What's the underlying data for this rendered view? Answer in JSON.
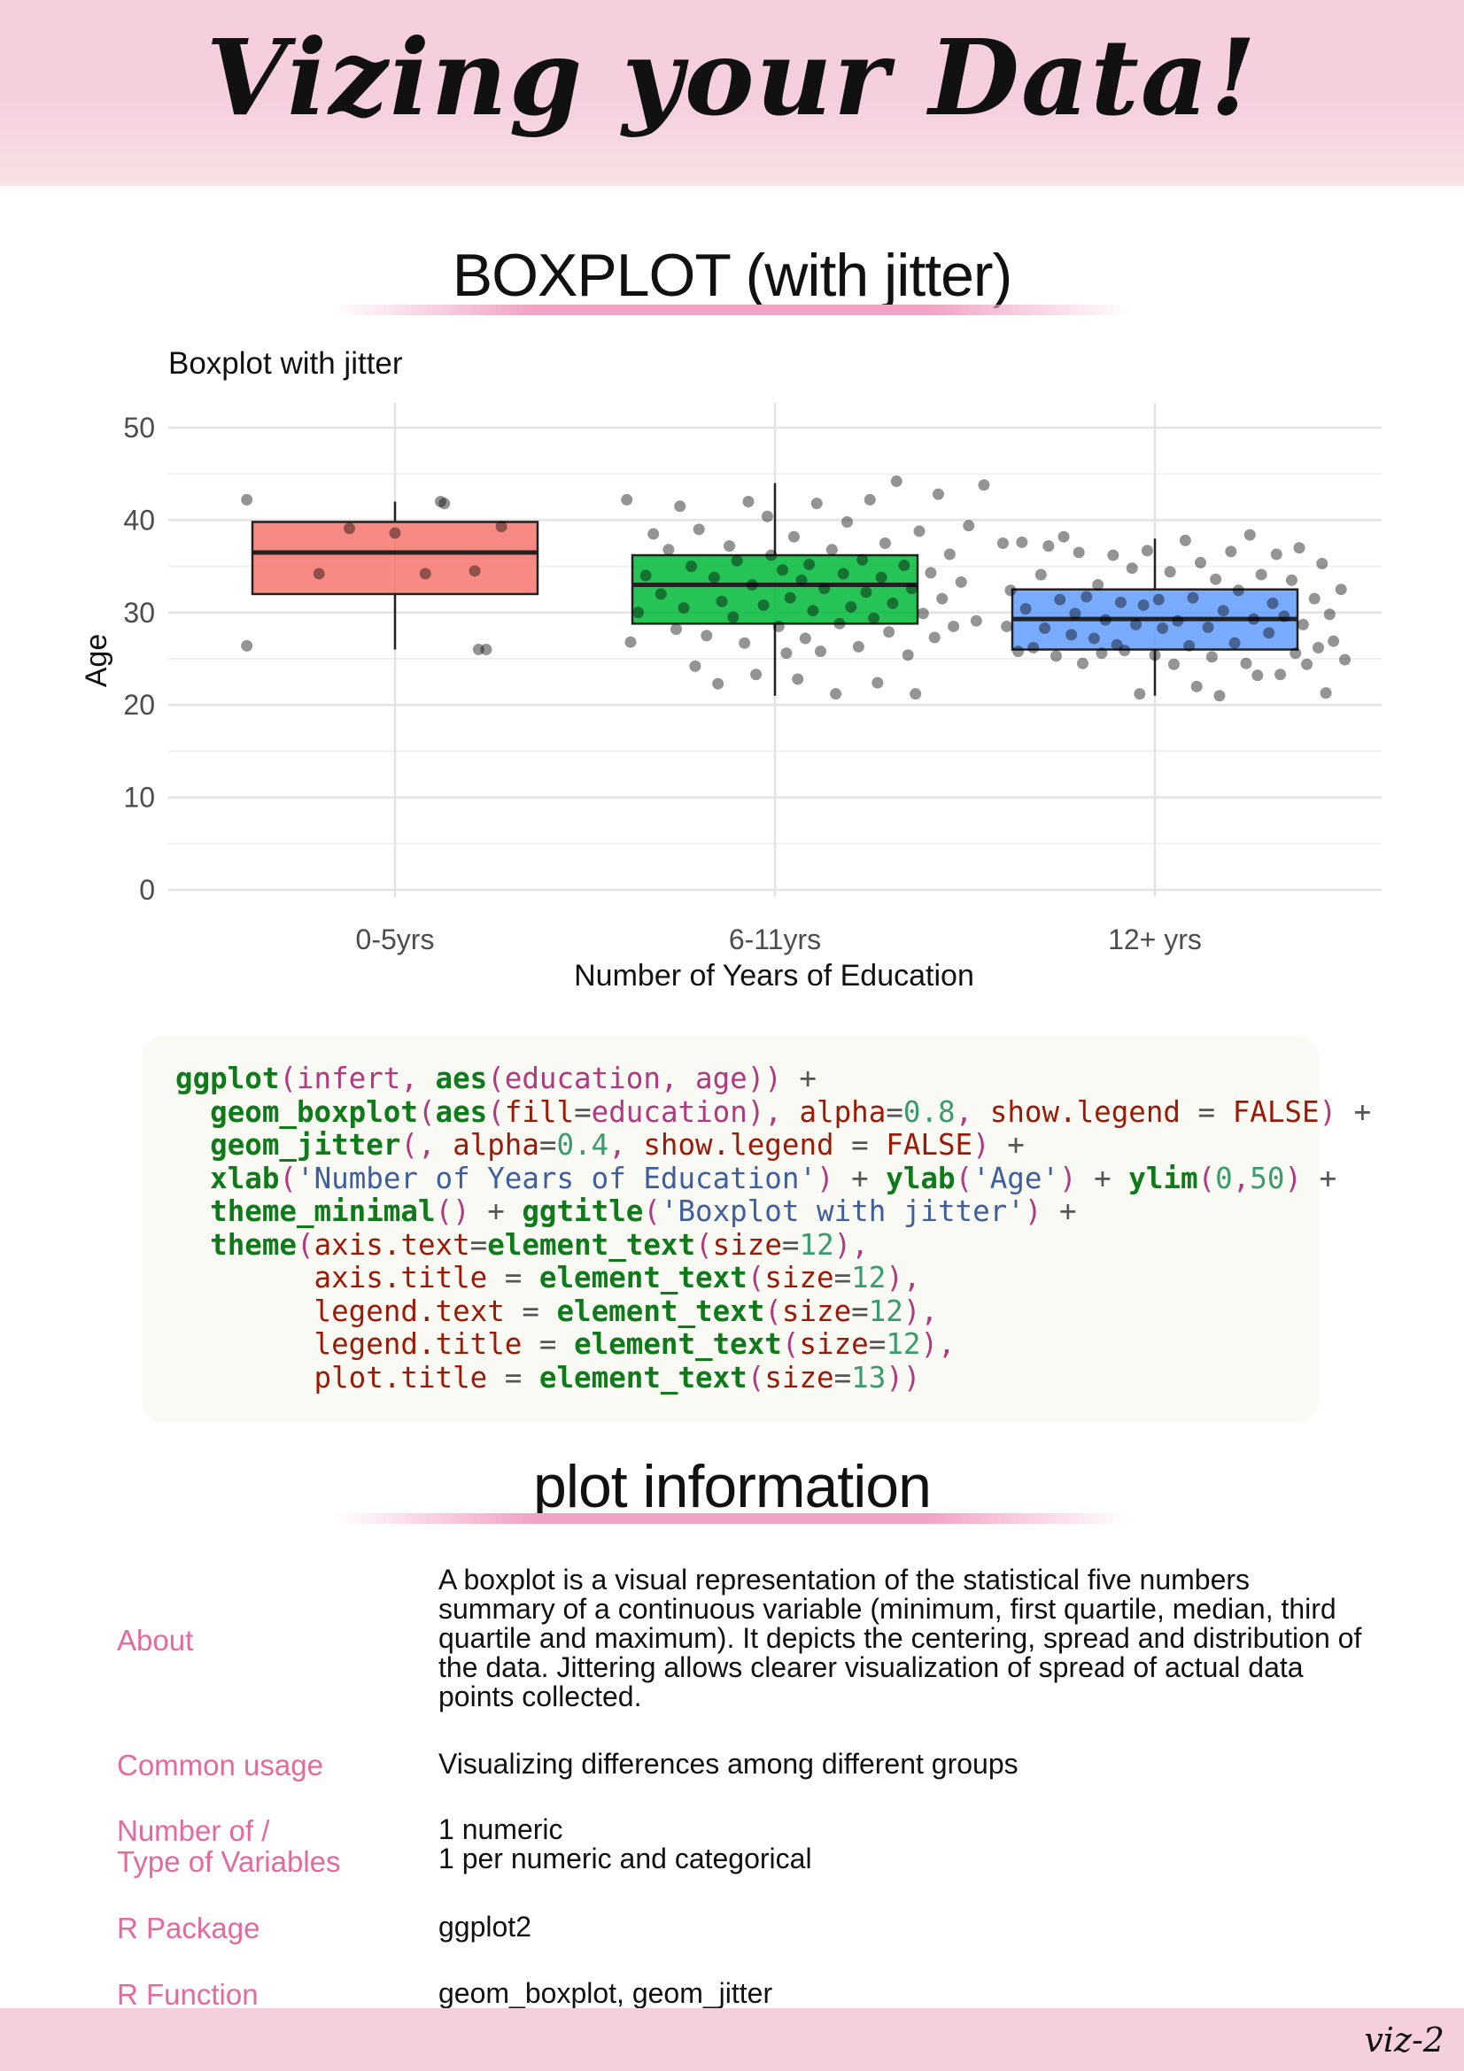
{
  "header": {
    "title": "Vizing your Data!"
  },
  "sections": {
    "chart_title": "BOXPLOT (with jitter)",
    "info_title": "plot information"
  },
  "chart_data": {
    "type": "boxplot",
    "title": "Boxplot with jitter",
    "xlabel": "Number of Years of Education",
    "ylabel": "Age",
    "ylim": [
      0,
      50
    ],
    "yticks": [
      0,
      10,
      20,
      30,
      40,
      50
    ],
    "grid": true,
    "categories": [
      "0-5yrs",
      "6-11yrs",
      "12+ yrs"
    ],
    "boxes": [
      {
        "category": "0-5yrs",
        "whisker_low": 26,
        "q1": 32,
        "median": 36.5,
        "q3": 39.8,
        "whisker_high": 42,
        "color": "#F8766D"
      },
      {
        "category": "6-11yrs",
        "whisker_low": 21,
        "q1": 28.8,
        "median": 33,
        "q3": 36.2,
        "whisker_high": 44,
        "color": "#00BA38"
      },
      {
        "category": "12+ yrs",
        "whisker_low": 21,
        "q1": 26,
        "median": 29.3,
        "q3": 32.5,
        "whisker_high": 38,
        "color": "#619CFF"
      }
    ],
    "points": [
      [
        0.61,
        42.2
      ],
      [
        0.61,
        26.4
      ],
      [
        0.8,
        34.2
      ],
      [
        0.88,
        39.1
      ],
      [
        1.0,
        38.6
      ],
      [
        1.08,
        34.2
      ],
      [
        1.12,
        42
      ],
      [
        1.13,
        41.8
      ],
      [
        1.21,
        34.5
      ],
      [
        1.22,
        26
      ],
      [
        1.24,
        26
      ],
      [
        1.28,
        39.3
      ],
      [
        1.61,
        42.2
      ],
      [
        1.62,
        26.8
      ],
      [
        1.64,
        30
      ],
      [
        1.66,
        34
      ],
      [
        1.68,
        38.5
      ],
      [
        1.7,
        32
      ],
      [
        1.72,
        36.8
      ],
      [
        1.74,
        28.2
      ],
      [
        1.75,
        41.5
      ],
      [
        1.76,
        30.5
      ],
      [
        1.78,
        35
      ],
      [
        1.79,
        24.2
      ],
      [
        1.8,
        39
      ],
      [
        1.82,
        27.5
      ],
      [
        1.84,
        33.8
      ],
      [
        1.85,
        22.3
      ],
      [
        1.86,
        31.2
      ],
      [
        1.88,
        37.2
      ],
      [
        1.89,
        29.5
      ],
      [
        1.9,
        35.6
      ],
      [
        1.92,
        26.7
      ],
      [
        1.93,
        42
      ],
      [
        1.94,
        33
      ],
      [
        1.95,
        23.3
      ],
      [
        1.97,
        30.8
      ],
      [
        1.98,
        40.4
      ],
      [
        1.99,
        36.2
      ],
      [
        2.01,
        28.5
      ],
      [
        2.02,
        34.6
      ],
      [
        2.03,
        25.6
      ],
      [
        2.04,
        31.6
      ],
      [
        2.05,
        38.2
      ],
      [
        2.06,
        22.8
      ],
      [
        2.07,
        33.5
      ],
      [
        2.08,
        27.2
      ],
      [
        2.09,
        35.2
      ],
      [
        2.1,
        30.2
      ],
      [
        2.11,
        41.8
      ],
      [
        2.12,
        25.8
      ],
      [
        2.13,
        32.6
      ],
      [
        2.15,
        36.8
      ],
      [
        2.16,
        21.2
      ],
      [
        2.17,
        28.8
      ],
      [
        2.18,
        34.2
      ],
      [
        2.19,
        39.8
      ],
      [
        2.2,
        30.6
      ],
      [
        2.22,
        26.3
      ],
      [
        2.23,
        35.7
      ],
      [
        2.24,
        32.2
      ],
      [
        2.25,
        42.2
      ],
      [
        2.26,
        29.4
      ],
      [
        2.27,
        22.4
      ],
      [
        2.28,
        33.8
      ],
      [
        2.29,
        37.5
      ],
      [
        2.3,
        27.9
      ],
      [
        2.31,
        31
      ],
      [
        2.32,
        44.2
      ],
      [
        2.34,
        35.1
      ],
      [
        2.35,
        25.4
      ],
      [
        2.36,
        32.6
      ],
      [
        2.37,
        21.2
      ],
      [
        2.38,
        38.8
      ],
      [
        2.39,
        29.9
      ],
      [
        2.41,
        34.3
      ],
      [
        2.42,
        27.3
      ],
      [
        2.43,
        42.8
      ],
      [
        2.44,
        31.5
      ],
      [
        2.46,
        36.3
      ],
      [
        2.47,
        28.5
      ],
      [
        2.49,
        33.3
      ],
      [
        2.51,
        39.4
      ],
      [
        2.53,
        29.1
      ],
      [
        2.55,
        43.8
      ],
      [
        2.6,
        37.5
      ],
      [
        2.61,
        28.5
      ],
      [
        2.62,
        32.4
      ],
      [
        2.64,
        25.8
      ],
      [
        2.65,
        37.6
      ],
      [
        2.66,
        30.4
      ],
      [
        2.68,
        26.2
      ],
      [
        2.7,
        34.1
      ],
      [
        2.71,
        28.3
      ],
      [
        2.72,
        37.2
      ],
      [
        2.74,
        25.3
      ],
      [
        2.75,
        31.4
      ],
      [
        2.76,
        38.2
      ],
      [
        2.78,
        27.6
      ],
      [
        2.79,
        29.9
      ],
      [
        2.8,
        36.5
      ],
      [
        2.81,
        24.5
      ],
      [
        2.82,
        31.7
      ],
      [
        2.84,
        27.2
      ],
      [
        2.85,
        33
      ],
      [
        2.86,
        25.6
      ],
      [
        2.87,
        29.2
      ],
      [
        2.89,
        36.2
      ],
      [
        2.9,
        26.5
      ],
      [
        2.91,
        31.1
      ],
      [
        2.92,
        25.9
      ],
      [
        2.94,
        34.8
      ],
      [
        2.95,
        28.7
      ],
      [
        2.96,
        21.2
      ],
      [
        2.97,
        30.8
      ],
      [
        2.98,
        36.7
      ],
      [
        3.0,
        25.4
      ],
      [
        3.01,
        31.4
      ],
      [
        3.02,
        28.3
      ],
      [
        3.04,
        34.4
      ],
      [
        3.05,
        24.4
      ],
      [
        3.06,
        29.1
      ],
      [
        3.08,
        37.8
      ],
      [
        3.09,
        26.4
      ],
      [
        3.1,
        31.6
      ],
      [
        3.11,
        22
      ],
      [
        3.12,
        35.4
      ],
      [
        3.14,
        28.4
      ],
      [
        3.15,
        25.2
      ],
      [
        3.16,
        33.6
      ],
      [
        3.17,
        21
      ],
      [
        3.18,
        30.2
      ],
      [
        3.2,
        36.6
      ],
      [
        3.21,
        26.7
      ],
      [
        3.22,
        32.4
      ],
      [
        3.24,
        24.5
      ],
      [
        3.25,
        38.4
      ],
      [
        3.26,
        29.3
      ],
      [
        3.27,
        23.2
      ],
      [
        3.28,
        34.1
      ],
      [
        3.3,
        27.8
      ],
      [
        3.31,
        31
      ],
      [
        3.32,
        36.3
      ],
      [
        3.33,
        23.3
      ],
      [
        3.34,
        29.6
      ],
      [
        3.36,
        33.5
      ],
      [
        3.37,
        25.6
      ],
      [
        3.38,
        37
      ],
      [
        3.39,
        28.7
      ],
      [
        3.4,
        24.4
      ],
      [
        3.42,
        31.5
      ],
      [
        3.43,
        26.2
      ],
      [
        3.44,
        35.3
      ],
      [
        3.45,
        21.3
      ],
      [
        3.46,
        29.8
      ],
      [
        3.47,
        26.9
      ],
      [
        3.49,
        32.5
      ],
      [
        3.5,
        24.9
      ]
    ]
  },
  "code": {
    "lines": [
      [
        [
          "k",
          "ggplot"
        ],
        [
          "p",
          "(infert, "
        ],
        [
          "k",
          "aes"
        ],
        [
          "p",
          "(education, age)) "
        ],
        [
          "o",
          "+"
        ]
      ],
      [
        [
          "o",
          "  "
        ],
        [
          "k",
          "geom_boxplot"
        ],
        [
          "p",
          "("
        ],
        [
          "k",
          "aes"
        ],
        [
          "p",
          "("
        ],
        [
          "r",
          "fill"
        ],
        [
          "o",
          "="
        ],
        [
          "p",
          "education), "
        ],
        [
          "r",
          "alpha"
        ],
        [
          "o",
          "="
        ],
        [
          "n",
          "0.8"
        ],
        [
          "p",
          ", "
        ],
        [
          "r",
          "show.legend"
        ],
        [
          "o",
          " = "
        ],
        [
          "r",
          "FALSE"
        ],
        [
          "p",
          ") "
        ],
        [
          "o",
          "+"
        ]
      ],
      [
        [
          "o",
          "  "
        ],
        [
          "k",
          "geom_jitter"
        ],
        [
          "p",
          "(, "
        ],
        [
          "r",
          "alpha"
        ],
        [
          "o",
          "="
        ],
        [
          "n",
          "0.4"
        ],
        [
          "p",
          ", "
        ],
        [
          "r",
          "show.legend"
        ],
        [
          "o",
          " = "
        ],
        [
          "r",
          "FALSE"
        ],
        [
          "p",
          ") "
        ],
        [
          "o",
          "+"
        ]
      ],
      [
        [
          "o",
          "  "
        ],
        [
          "k",
          "xlab"
        ],
        [
          "p",
          "("
        ],
        [
          "s",
          "'Number of Years of Education'"
        ],
        [
          "p",
          ") "
        ],
        [
          "o",
          "+ "
        ],
        [
          "k",
          "ylab"
        ],
        [
          "p",
          "("
        ],
        [
          "s",
          "'Age'"
        ],
        [
          "p",
          ") "
        ],
        [
          "o",
          "+ "
        ],
        [
          "k",
          "ylim"
        ],
        [
          "p",
          "("
        ],
        [
          "n",
          "0"
        ],
        [
          "p",
          ","
        ],
        [
          "n",
          "50"
        ],
        [
          "p",
          ") "
        ],
        [
          "o",
          "+"
        ]
      ],
      [
        [
          "o",
          "  "
        ],
        [
          "k",
          "theme_minimal"
        ],
        [
          "p",
          "() "
        ],
        [
          "o",
          "+ "
        ],
        [
          "k",
          "ggtitle"
        ],
        [
          "p",
          "("
        ],
        [
          "s",
          "'Boxplot with jitter'"
        ],
        [
          "p",
          ") "
        ],
        [
          "o",
          "+"
        ]
      ],
      [
        [
          "o",
          "  "
        ],
        [
          "k",
          "theme"
        ],
        [
          "p",
          "("
        ],
        [
          "r",
          "axis.text"
        ],
        [
          "o",
          "="
        ],
        [
          "k",
          "element_text"
        ],
        [
          "p",
          "("
        ],
        [
          "r",
          "size"
        ],
        [
          "o",
          "="
        ],
        [
          "n",
          "12"
        ],
        [
          "p",
          "),"
        ]
      ],
      [
        [
          "o",
          "        "
        ],
        [
          "r",
          "axis.title"
        ],
        [
          "o",
          " = "
        ],
        [
          "k",
          "element_text"
        ],
        [
          "p",
          "("
        ],
        [
          "r",
          "size"
        ],
        [
          "o",
          "="
        ],
        [
          "n",
          "12"
        ],
        [
          "p",
          "),"
        ]
      ],
      [
        [
          "o",
          "        "
        ],
        [
          "r",
          "legend.text"
        ],
        [
          "o",
          " = "
        ],
        [
          "k",
          "element_text"
        ],
        [
          "p",
          "("
        ],
        [
          "r",
          "size"
        ],
        [
          "o",
          "="
        ],
        [
          "n",
          "12"
        ],
        [
          "p",
          "),"
        ]
      ],
      [
        [
          "o",
          "        "
        ],
        [
          "r",
          "legend.title"
        ],
        [
          "o",
          " = "
        ],
        [
          "k",
          "element_text"
        ],
        [
          "p",
          "("
        ],
        [
          "r",
          "size"
        ],
        [
          "o",
          "="
        ],
        [
          "n",
          "12"
        ],
        [
          "p",
          "),"
        ]
      ],
      [
        [
          "o",
          "        "
        ],
        [
          "r",
          "plot.title"
        ],
        [
          "o",
          " = "
        ],
        [
          "k",
          "element_text"
        ],
        [
          "p",
          "("
        ],
        [
          "r",
          "size"
        ],
        [
          "o",
          "="
        ],
        [
          "n",
          "13"
        ],
        [
          "p",
          "))"
        ]
      ]
    ]
  },
  "info": {
    "about_label": "About",
    "about_value": "A boxplot is a visual representation of the statistical five numbers summary of a continuous variable (minimum, first quartile, median, third quartile and maximum). It depicts the centering, spread and distribution of the data. Jittering allows clearer visualization of spread of actual data points collected.",
    "usage_label": "Common usage",
    "usage_value": "Visualizing differences among different groups",
    "variables_label": "Number of /\nType of Variables",
    "variables_value": "1 numeric\n1 per numeric and categorical",
    "package_label": "R Package",
    "package_value": "ggplot2",
    "function_label": "R Function",
    "function_value": "geom_boxplot, geom_jitter"
  },
  "footer": {
    "tag": "viz-2"
  }
}
